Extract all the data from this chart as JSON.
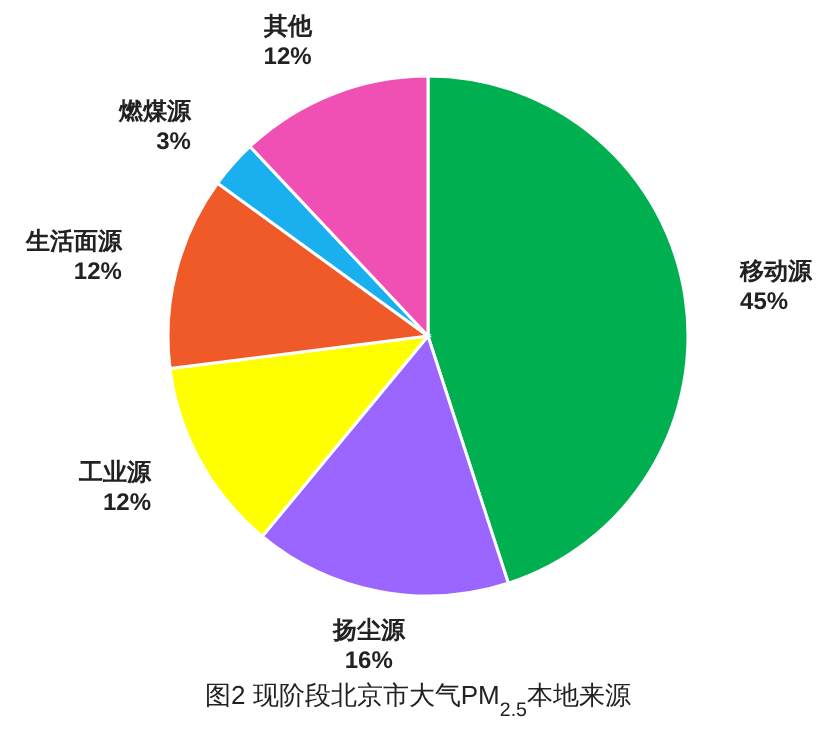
{
  "chart_data": {
    "type": "pie",
    "title": "图2 现阶段北京市大气PM$_{2.5}$本地来源",
    "categories": [
      "移动源",
      "扬尘源",
      "工业源",
      "生活面源",
      "燃煤源",
      "其他"
    ],
    "values": [
      45,
      16,
      12,
      12,
      3,
      12
    ],
    "colors": [
      "#00b050",
      "#9b66ff",
      "#ffff00",
      "#f05a28",
      "#1ab0f0",
      "#f050b4"
    ],
    "value_labels": [
      "45%",
      "16%",
      "12%",
      "12%",
      "3%",
      "12%"
    ]
  }
}
